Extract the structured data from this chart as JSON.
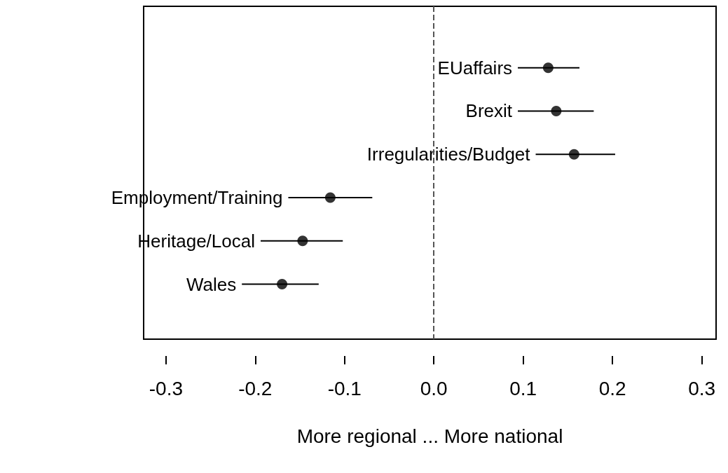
{
  "chart_data": {
    "type": "scatter",
    "orientation": "horizontal",
    "xlabel": "More regional ... More national",
    "categories": [
      "EUaffairs",
      "Brexit",
      "Irregularities/Budget",
      "Employment/Training",
      "Heritage/Local",
      "Wales"
    ],
    "values": [
      0.128,
      0.137,
      0.157,
      -0.116,
      -0.147,
      -0.17
    ],
    "errors": [
      [
        0.094,
        0.163
      ],
      [
        0.094,
        0.179
      ],
      [
        0.114,
        0.203
      ],
      [
        -0.163,
        -0.069
      ],
      [
        -0.194,
        -0.102
      ],
      [
        -0.215,
        -0.129
      ]
    ],
    "color": "#000000",
    "marker": "circle",
    "xlim": [
      -0.325,
      0.316
    ],
    "xticks": [
      -0.3,
      -0.2,
      -0.1,
      {
        "value": 0,
        "label": "0.0"
      },
      0.1,
      0.2,
      0.3
    ],
    "ref_lines": [
      {
        "axis": "x",
        "value": 0,
        "line_style": "dashed",
        "color": "#555555"
      }
    ],
    "tick_labels": "x",
    "grid": false
  }
}
